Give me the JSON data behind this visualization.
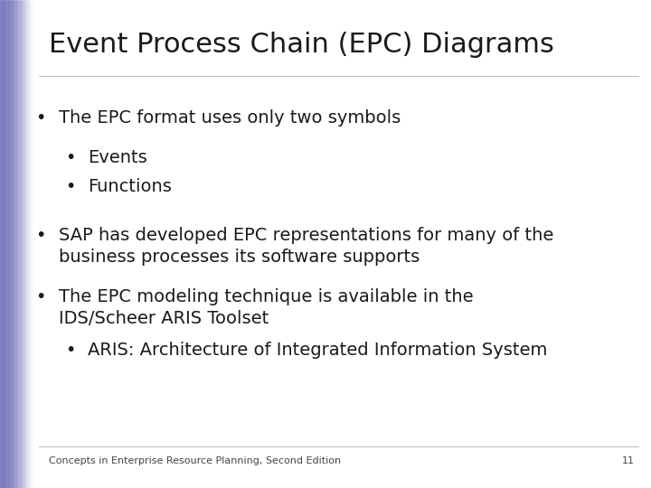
{
  "title": "Event Process Chain (EPC) Diagrams",
  "title_fontsize": 22,
  "background_color": "#ffffff",
  "left_bar_color": "#7b7bbf",
  "footer_text": "Concepts in Enterprise Resource Planning, Second Edition",
  "footer_page": "11",
  "footer_fontsize": 8,
  "text_fontsize": 14,
  "bullet_items": [
    {
      "level": 1,
      "text": "The EPC format uses only two symbols",
      "indent": 0.09,
      "bullet_indent": 0.055
    },
    {
      "level": 2,
      "text": "Events",
      "indent": 0.135,
      "bullet_indent": 0.1
    },
    {
      "level": 2,
      "text": "Functions",
      "indent": 0.135,
      "bullet_indent": 0.1
    },
    {
      "level": 1,
      "text": "SAP has developed EPC representations for many of the\nbusiness processes its software supports",
      "indent": 0.09,
      "bullet_indent": 0.055
    },
    {
      "level": 1,
      "text": "The EPC modeling technique is available in the\nIDS/Scheer ARIS Toolset",
      "indent": 0.09,
      "bullet_indent": 0.055
    },
    {
      "level": 2,
      "text": "ARIS: Architecture of Integrated Information System",
      "indent": 0.135,
      "bullet_indent": 0.1
    }
  ]
}
